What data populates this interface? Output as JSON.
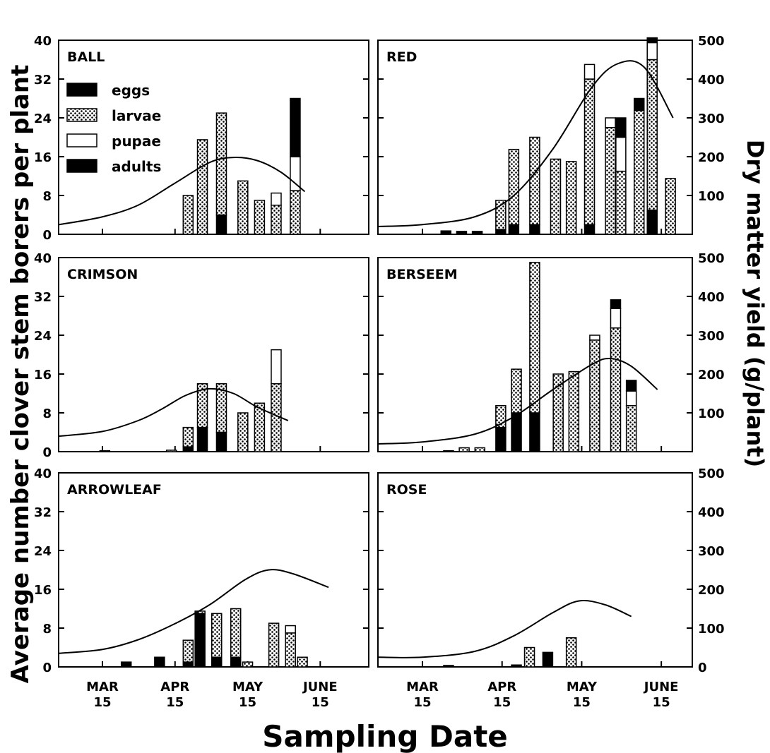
{
  "left_axis_title": "Average number clover stem borers per plant",
  "right_axis_title": "Dry matter yield (g/plant)",
  "x_axis_title": "Sampling Date",
  "legend": [
    {
      "label": "eggs",
      "pattern": "solid"
    },
    {
      "label": "larvae",
      "pattern": "dots"
    },
    {
      "label": "pupae",
      "pattern": "open"
    },
    {
      "label": "adults",
      "pattern": "solid"
    }
  ],
  "left_ticks": [
    "0",
    "8",
    "16",
    "24",
    "32",
    "40"
  ],
  "right_ticks": [
    "100",
    "200",
    "300",
    "400",
    "500"
  ],
  "right_ticks_bottom": [
    "0",
    "100",
    "200",
    "300",
    "400",
    "500"
  ],
  "x_ticks": [
    {
      "month": "MAR",
      "day": "15"
    },
    {
      "month": "APR",
      "day": "15"
    },
    {
      "month": "MAY",
      "day": "15"
    },
    {
      "month": "JUNE",
      "day": "15"
    }
  ],
  "chart_data": [
    {
      "type": "bar",
      "title": "BALL",
      "xlabel": "Sampling Date",
      "ylabel": "Average number clover stem borers per plant",
      "ylim": [
        0,
        40
      ],
      "y2lim": [
        0,
        500
      ],
      "x_unit": "days since Mar 15",
      "bars": [
        {
          "x": 36,
          "eggs": 0,
          "larvae": 8,
          "pupae": 0,
          "adults": 0
        },
        {
          "x": 42,
          "eggs": 0,
          "larvae": 19.5,
          "pupae": 0,
          "adults": 0
        },
        {
          "x": 50,
          "eggs": 4,
          "larvae": 21,
          "pupae": 0,
          "adults": 0
        },
        {
          "x": 59,
          "eggs": 0,
          "larvae": 11,
          "pupae": 0,
          "adults": 0
        },
        {
          "x": 66,
          "eggs": 0,
          "larvae": 7,
          "pupae": 0,
          "adults": 0
        },
        {
          "x": 73,
          "eggs": 0,
          "larvae": 6,
          "pupae": 2.5,
          "adults": 0
        },
        {
          "x": 81,
          "eggs": 0,
          "larvae": 9,
          "pupae": 7,
          "adults": 12
        }
      ],
      "yield_curve": [
        [
          -20,
          25
        ],
        [
          0,
          45
        ],
        [
          15,
          75
        ],
        [
          30,
          130
        ],
        [
          45,
          185
        ],
        [
          55,
          198
        ],
        [
          65,
          190
        ],
        [
          75,
          160
        ],
        [
          85,
          110
        ]
      ]
    },
    {
      "type": "bar",
      "title": "RED",
      "ylim": [
        0,
        40
      ],
      "y2lim": [
        0,
        500
      ],
      "bars": [
        {
          "x": 9,
          "eggs": 0,
          "larvae": 0,
          "pupae": 0,
          "adults": 0.7
        },
        {
          "x": 15,
          "eggs": 0,
          "larvae": 0,
          "pupae": 0,
          "adults": 0.6
        },
        {
          "x": 21,
          "eggs": 0,
          "larvae": 0,
          "pupae": 0,
          "adults": 0.6
        },
        {
          "x": 30,
          "eggs": 1,
          "larvae": 6,
          "pupae": 0,
          "adults": 0
        },
        {
          "x": 35,
          "eggs": 2,
          "larvae": 15.5,
          "pupae": 0,
          "adults": 0
        },
        {
          "x": 43,
          "eggs": 2,
          "larvae": 18,
          "pupae": 0,
          "adults": 0
        },
        {
          "x": 51,
          "eggs": 0,
          "larvae": 15.5,
          "pupae": 0,
          "adults": 0
        },
        {
          "x": 57,
          "eggs": 0,
          "larvae": 15,
          "pupae": 0,
          "adults": 0
        },
        {
          "x": 64,
          "eggs": 2,
          "larvae": 30,
          "pupae": 3,
          "adults": 0
        },
        {
          "x": 72,
          "eggs": 0,
          "larvae": 22,
          "pupae": 2,
          "adults": 0
        },
        {
          "x": 76,
          "eggs": 0,
          "larvae": 13,
          "pupae": 7,
          "adults": 4
        },
        {
          "x": 83,
          "eggs": 0,
          "larvae": 25.5,
          "pupae": 0,
          "adults": 2.5
        },
        {
          "x": 88,
          "eggs": 5,
          "larvae": 31,
          "pupae": 3.5,
          "adults": 1
        },
        {
          "x": 95,
          "eggs": 0,
          "larvae": 11.5,
          "pupae": 0,
          "adults": 0
        }
      ],
      "yield_curve": [
        [
          -20,
          20
        ],
        [
          0,
          25
        ],
        [
          20,
          45
        ],
        [
          35,
          100
        ],
        [
          50,
          220
        ],
        [
          65,
          380
        ],
        [
          75,
          440
        ],
        [
          85,
          430
        ],
        [
          96,
          300
        ]
      ]
    },
    {
      "type": "bar",
      "title": "CRIMSON",
      "ylim": [
        0,
        40
      ],
      "y2lim": [
        0,
        500
      ],
      "bars": [
        {
          "x": 1,
          "eggs": 0,
          "larvae": 0,
          "pupae": 0,
          "adults": 0.2
        },
        {
          "x": 29,
          "eggs": 0,
          "larvae": 0.3,
          "pupae": 0,
          "adults": 0
        },
        {
          "x": 36,
          "eggs": 1,
          "larvae": 4,
          "pupae": 0,
          "adults": 0
        },
        {
          "x": 42,
          "eggs": 5,
          "larvae": 9,
          "pupae": 0,
          "adults": 0
        },
        {
          "x": 50,
          "eggs": 4,
          "larvae": 10,
          "pupae": 0,
          "adults": 0
        },
        {
          "x": 59,
          "eggs": 0,
          "larvae": 8,
          "pupae": 0,
          "adults": 0
        },
        {
          "x": 66,
          "eggs": 0,
          "larvae": 10,
          "pupae": 0,
          "adults": 0
        },
        {
          "x": 73,
          "eggs": 0,
          "larvae": 14,
          "pupae": 7,
          "adults": 0
        }
      ],
      "yield_curve": [
        [
          -20,
          40
        ],
        [
          0,
          52
        ],
        [
          15,
          80
        ],
        [
          25,
          110
        ],
        [
          35,
          145
        ],
        [
          45,
          162
        ],
        [
          55,
          150
        ],
        [
          65,
          115
        ],
        [
          78,
          80
        ]
      ]
    },
    {
      "type": "bar",
      "title": "BERSEEM",
      "ylim": [
        0,
        40
      ],
      "y2lim": [
        0,
        500
      ],
      "bars": [
        {
          "x": 10,
          "eggs": 0,
          "larvae": 0,
          "pupae": 0,
          "adults": 0.2
        },
        {
          "x": 16,
          "eggs": 0,
          "larvae": 0.8,
          "pupae": 0,
          "adults": 0
        },
        {
          "x": 22,
          "eggs": 0,
          "larvae": 0.8,
          "pupae": 0,
          "adults": 0
        },
        {
          "x": 30,
          "eggs": 5,
          "larvae": 4.5,
          "pupae": 0,
          "adults": 0
        },
        {
          "x": 36,
          "eggs": 8,
          "larvae": 9,
          "pupae": 0,
          "adults": 0
        },
        {
          "x": 43,
          "eggs": 8,
          "larvae": 31,
          "pupae": 0,
          "adults": 0
        },
        {
          "x": 52,
          "eggs": 0,
          "larvae": 16,
          "pupae": 0,
          "adults": 0
        },
        {
          "x": 58,
          "eggs": 0,
          "larvae": 16.5,
          "pupae": 0,
          "adults": 0
        },
        {
          "x": 66,
          "eggs": 0,
          "larvae": 23,
          "pupae": 1,
          "adults": 0
        },
        {
          "x": 74,
          "eggs": 0,
          "larvae": 25.5,
          "pupae": 4,
          "adults": 1.8
        },
        {
          "x": 80,
          "eggs": 0,
          "larvae": 9.5,
          "pupae": 3,
          "adults": 2.2
        }
      ],
      "yield_curve": [
        [
          -20,
          20
        ],
        [
          0,
          25
        ],
        [
          20,
          45
        ],
        [
          35,
          90
        ],
        [
          50,
          160
        ],
        [
          65,
          225
        ],
        [
          72,
          240
        ],
        [
          80,
          220
        ],
        [
          90,
          160
        ]
      ]
    },
    {
      "type": "bar",
      "title": "ARROWLEAF",
      "ylim": [
        0,
        40
      ],
      "y2lim": [
        0,
        500
      ],
      "bars": [
        {
          "x": 10,
          "eggs": 0,
          "larvae": 0,
          "pupae": 0,
          "adults": 1
        },
        {
          "x": 24,
          "eggs": 2,
          "larvae": 0,
          "pupae": 0,
          "adults": 0
        },
        {
          "x": 36,
          "eggs": 1,
          "larvae": 4.5,
          "pupae": 0,
          "adults": 0
        },
        {
          "x": 41,
          "eggs": 11,
          "larvae": 0.5,
          "pupae": 0,
          "adults": 0
        },
        {
          "x": 48,
          "eggs": 2,
          "larvae": 9,
          "pupae": 0,
          "adults": 0
        },
        {
          "x": 56,
          "eggs": 2,
          "larvae": 10,
          "pupae": 0,
          "adults": 0
        },
        {
          "x": 61,
          "eggs": 0,
          "larvae": 1,
          "pupae": 0,
          "adults": 0
        },
        {
          "x": 72,
          "eggs": 0,
          "larvae": 9,
          "pupae": 0,
          "adults": 0
        },
        {
          "x": 79,
          "eggs": 0,
          "larvae": 7,
          "pupae": 1.5,
          "adults": 0
        },
        {
          "x": 84,
          "eggs": 0,
          "larvae": 2,
          "pupae": 0,
          "adults": 0
        }
      ],
      "yield_curve": [
        [
          -20,
          35
        ],
        [
          0,
          45
        ],
        [
          15,
          70
        ],
        [
          30,
          110
        ],
        [
          45,
          160
        ],
        [
          60,
          225
        ],
        [
          70,
          250
        ],
        [
          80,
          240
        ],
        [
          95,
          205
        ]
      ]
    },
    {
      "type": "bar",
      "title": "ROSE",
      "ylim": [
        0,
        40
      ],
      "y2lim": [
        0,
        500
      ],
      "bars": [
        {
          "x": 10,
          "eggs": 0,
          "larvae": 0,
          "pupae": 0,
          "adults": 0.3
        },
        {
          "x": 36,
          "eggs": 0.4,
          "larvae": 0,
          "pupae": 0,
          "adults": 0
        },
        {
          "x": 41,
          "eggs": 0,
          "larvae": 4,
          "pupae": 0,
          "adults": 0
        },
        {
          "x": 48,
          "eggs": 3,
          "larvae": 0,
          "pupae": 0,
          "adults": 0
        },
        {
          "x": 57,
          "eggs": 0,
          "larvae": 6,
          "pupae": 0,
          "adults": 0
        }
      ],
      "yield_curve": [
        [
          -20,
          25
        ],
        [
          0,
          25
        ],
        [
          20,
          40
        ],
        [
          35,
          80
        ],
        [
          50,
          140
        ],
        [
          60,
          170
        ],
        [
          70,
          160
        ],
        [
          80,
          130
        ]
      ]
    }
  ]
}
